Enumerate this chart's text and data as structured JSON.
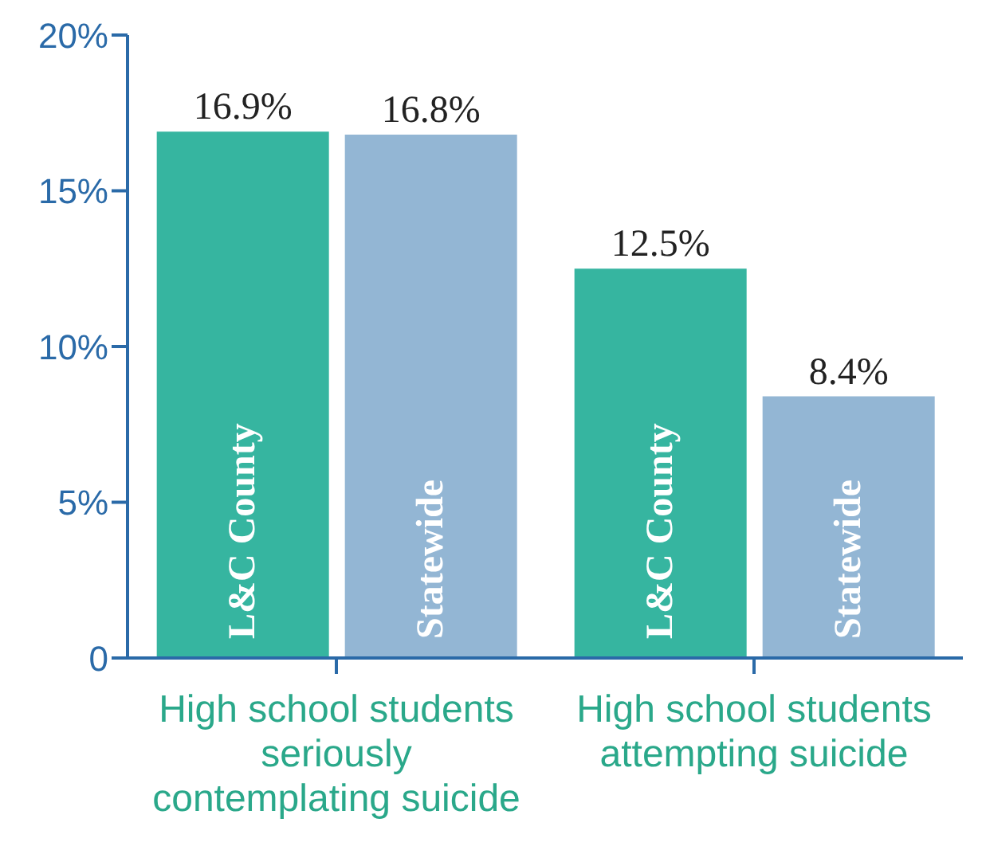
{
  "chart_data": {
    "type": "bar",
    "categories": [
      "High school students seriously contemplating suicide",
      "High school students attempting suicide"
    ],
    "series": [
      {
        "name": "L&C County",
        "color": "#36b5a0",
        "values": [
          16.9,
          12.5
        ],
        "value_labels": [
          "16.9%",
          "12.5%"
        ]
      },
      {
        "name": "Statewide",
        "color": "#93b6d4",
        "values": [
          16.8,
          8.4
        ],
        "value_labels": [
          "16.8%",
          "8.4%"
        ]
      }
    ],
    "ylim": [
      0,
      20
    ],
    "yticks": [
      {
        "value": 0,
        "label": "0"
      },
      {
        "value": 5,
        "label": "5%"
      },
      {
        "value": 10,
        "label": "10%"
      },
      {
        "value": 15,
        "label": "15%"
      },
      {
        "value": 20,
        "label": "20%"
      }
    ],
    "grid": false,
    "legend": false
  }
}
